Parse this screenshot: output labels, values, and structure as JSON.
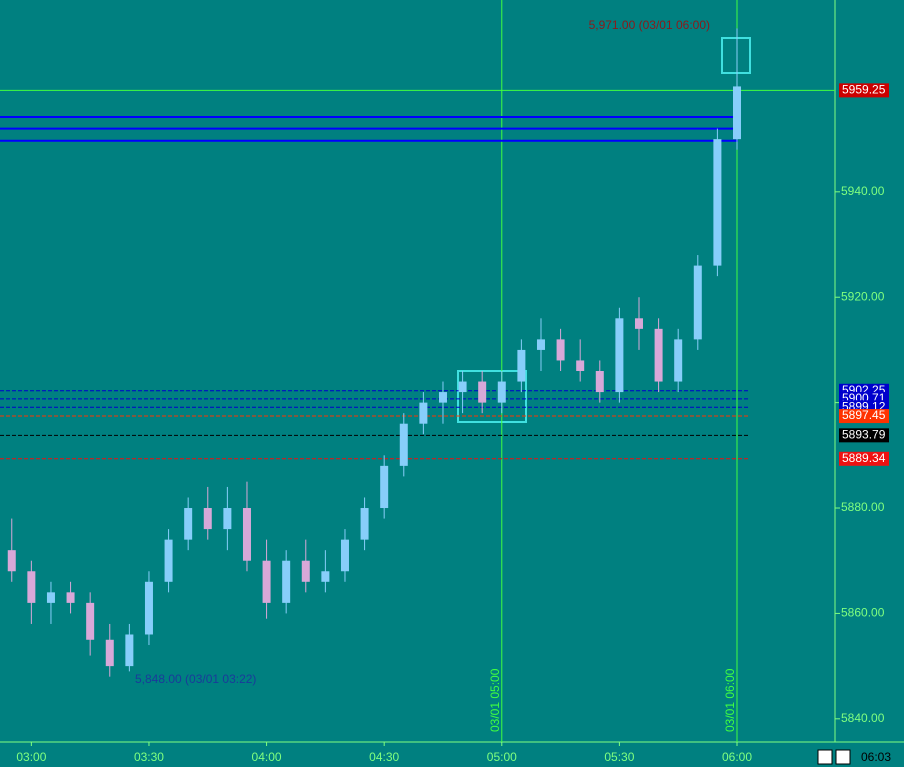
{
  "chart_data": {
    "type": "candlestick",
    "x": [
      "02:55",
      "03:00",
      "03:05",
      "03:10",
      "03:15",
      "03:20",
      "03:25",
      "03:30",
      "03:35",
      "03:40",
      "03:45",
      "03:50",
      "03:55",
      "04:00",
      "04:05",
      "04:10",
      "04:15",
      "04:20",
      "04:25",
      "04:30",
      "04:35",
      "04:40",
      "04:45",
      "04:50",
      "04:55",
      "05:00",
      "05:05",
      "05:10",
      "05:15",
      "05:20",
      "05:25",
      "05:30",
      "05:35",
      "05:40",
      "05:45",
      "05:50",
      "05:55",
      "06:00"
    ],
    "open": [
      5872,
      5868,
      5862,
      5864,
      5862,
      5855,
      5850,
      5856,
      5866,
      5874,
      5880,
      5876,
      5880,
      5870,
      5862,
      5870,
      5866,
      5868,
      5874,
      5880,
      5888,
      5896,
      5900,
      5902,
      5904,
      5900,
      5904,
      5910,
      5912,
      5908,
      5906,
      5902,
      5916,
      5914,
      5904,
      5912,
      5926,
      5950
    ],
    "high": [
      5878,
      5870,
      5866,
      5866,
      5864,
      5858,
      5858,
      5868,
      5876,
      5882,
      5884,
      5884,
      5885,
      5874,
      5872,
      5874,
      5872,
      5876,
      5882,
      5890,
      5898,
      5902,
      5904,
      5906,
      5906,
      5906,
      5912,
      5916,
      5914,
      5912,
      5908,
      5918,
      5920,
      5916,
      5914,
      5928,
      5952,
      5971
    ],
    "low": [
      5866,
      5858,
      5858,
      5860,
      5852,
      5848,
      5849,
      5854,
      5864,
      5872,
      5874,
      5872,
      5868,
      5859,
      5860,
      5864,
      5864,
      5866,
      5872,
      5878,
      5886,
      5894,
      5896,
      5898,
      5898,
      5898,
      5902,
      5906,
      5906,
      5904,
      5900,
      5900,
      5910,
      5902,
      5902,
      5910,
      5924,
      5948
    ],
    "close": [
      5868,
      5862,
      5864,
      5862,
      5855,
      5850,
      5856,
      5866,
      5874,
      5880,
      5876,
      5880,
      5870,
      5862,
      5870,
      5866,
      5868,
      5874,
      5880,
      5888,
      5896,
      5900,
      5902,
      5904,
      5900,
      5904,
      5910,
      5912,
      5908,
      5906,
      5902,
      5916,
      5914,
      5904,
      5912,
      5926,
      5950,
      5960
    ],
    "up_color": "#87cefa",
    "down_color": "#d8a8d8",
    "xlim": [
      "02:52",
      "06:25"
    ],
    "xticks": [
      "03:00",
      "03:30",
      "04:00",
      "04:30",
      "05:00",
      "05:30",
      "06:00"
    ],
    "ylim": [
      5835.6,
      5976.4
    ],
    "yticks": [
      {
        "value": 5840,
        "label": "5840.00"
      },
      {
        "value": 5860,
        "label": "5860.00"
      },
      {
        "value": 5880,
        "label": "5880.00"
      },
      {
        "value": 5900,
        "label": "5900.00"
      },
      {
        "value": 5920,
        "label": "5920.00"
      },
      {
        "value": 5940,
        "label": "5940.00"
      }
    ],
    "levels": [
      {
        "value": 5959.25,
        "color": "#cc0000"
      },
      {
        "value": 5902.25,
        "color": "#0000cc"
      },
      {
        "value": 5900.71,
        "color": "#0000cc"
      },
      {
        "value": 5899.12,
        "color": "#0000cc"
      },
      {
        "value": 5897.45,
        "color": "#ff3300"
      },
      {
        "value": 5893.79,
        "color": "#000000"
      },
      {
        "value": 5889.34,
        "color": "#ee1111"
      }
    ],
    "lines": [
      {
        "value": 5954.2,
        "color": "#0000ff"
      },
      {
        "value": 5952,
        "color": "#0000ff"
      },
      {
        "value": 5949.7,
        "color": "#0000ff"
      }
    ],
    "vlines": [
      {
        "x": "05:00",
        "label": "03/01 05:00"
      },
      {
        "x": "06:00",
        "label": "03/01 06:00"
      }
    ],
    "annotations": [
      "5,971.00 (03/01 06:00)",
      "5,848.00 (03/01 03:22)"
    ],
    "clock": "06:03"
  }
}
